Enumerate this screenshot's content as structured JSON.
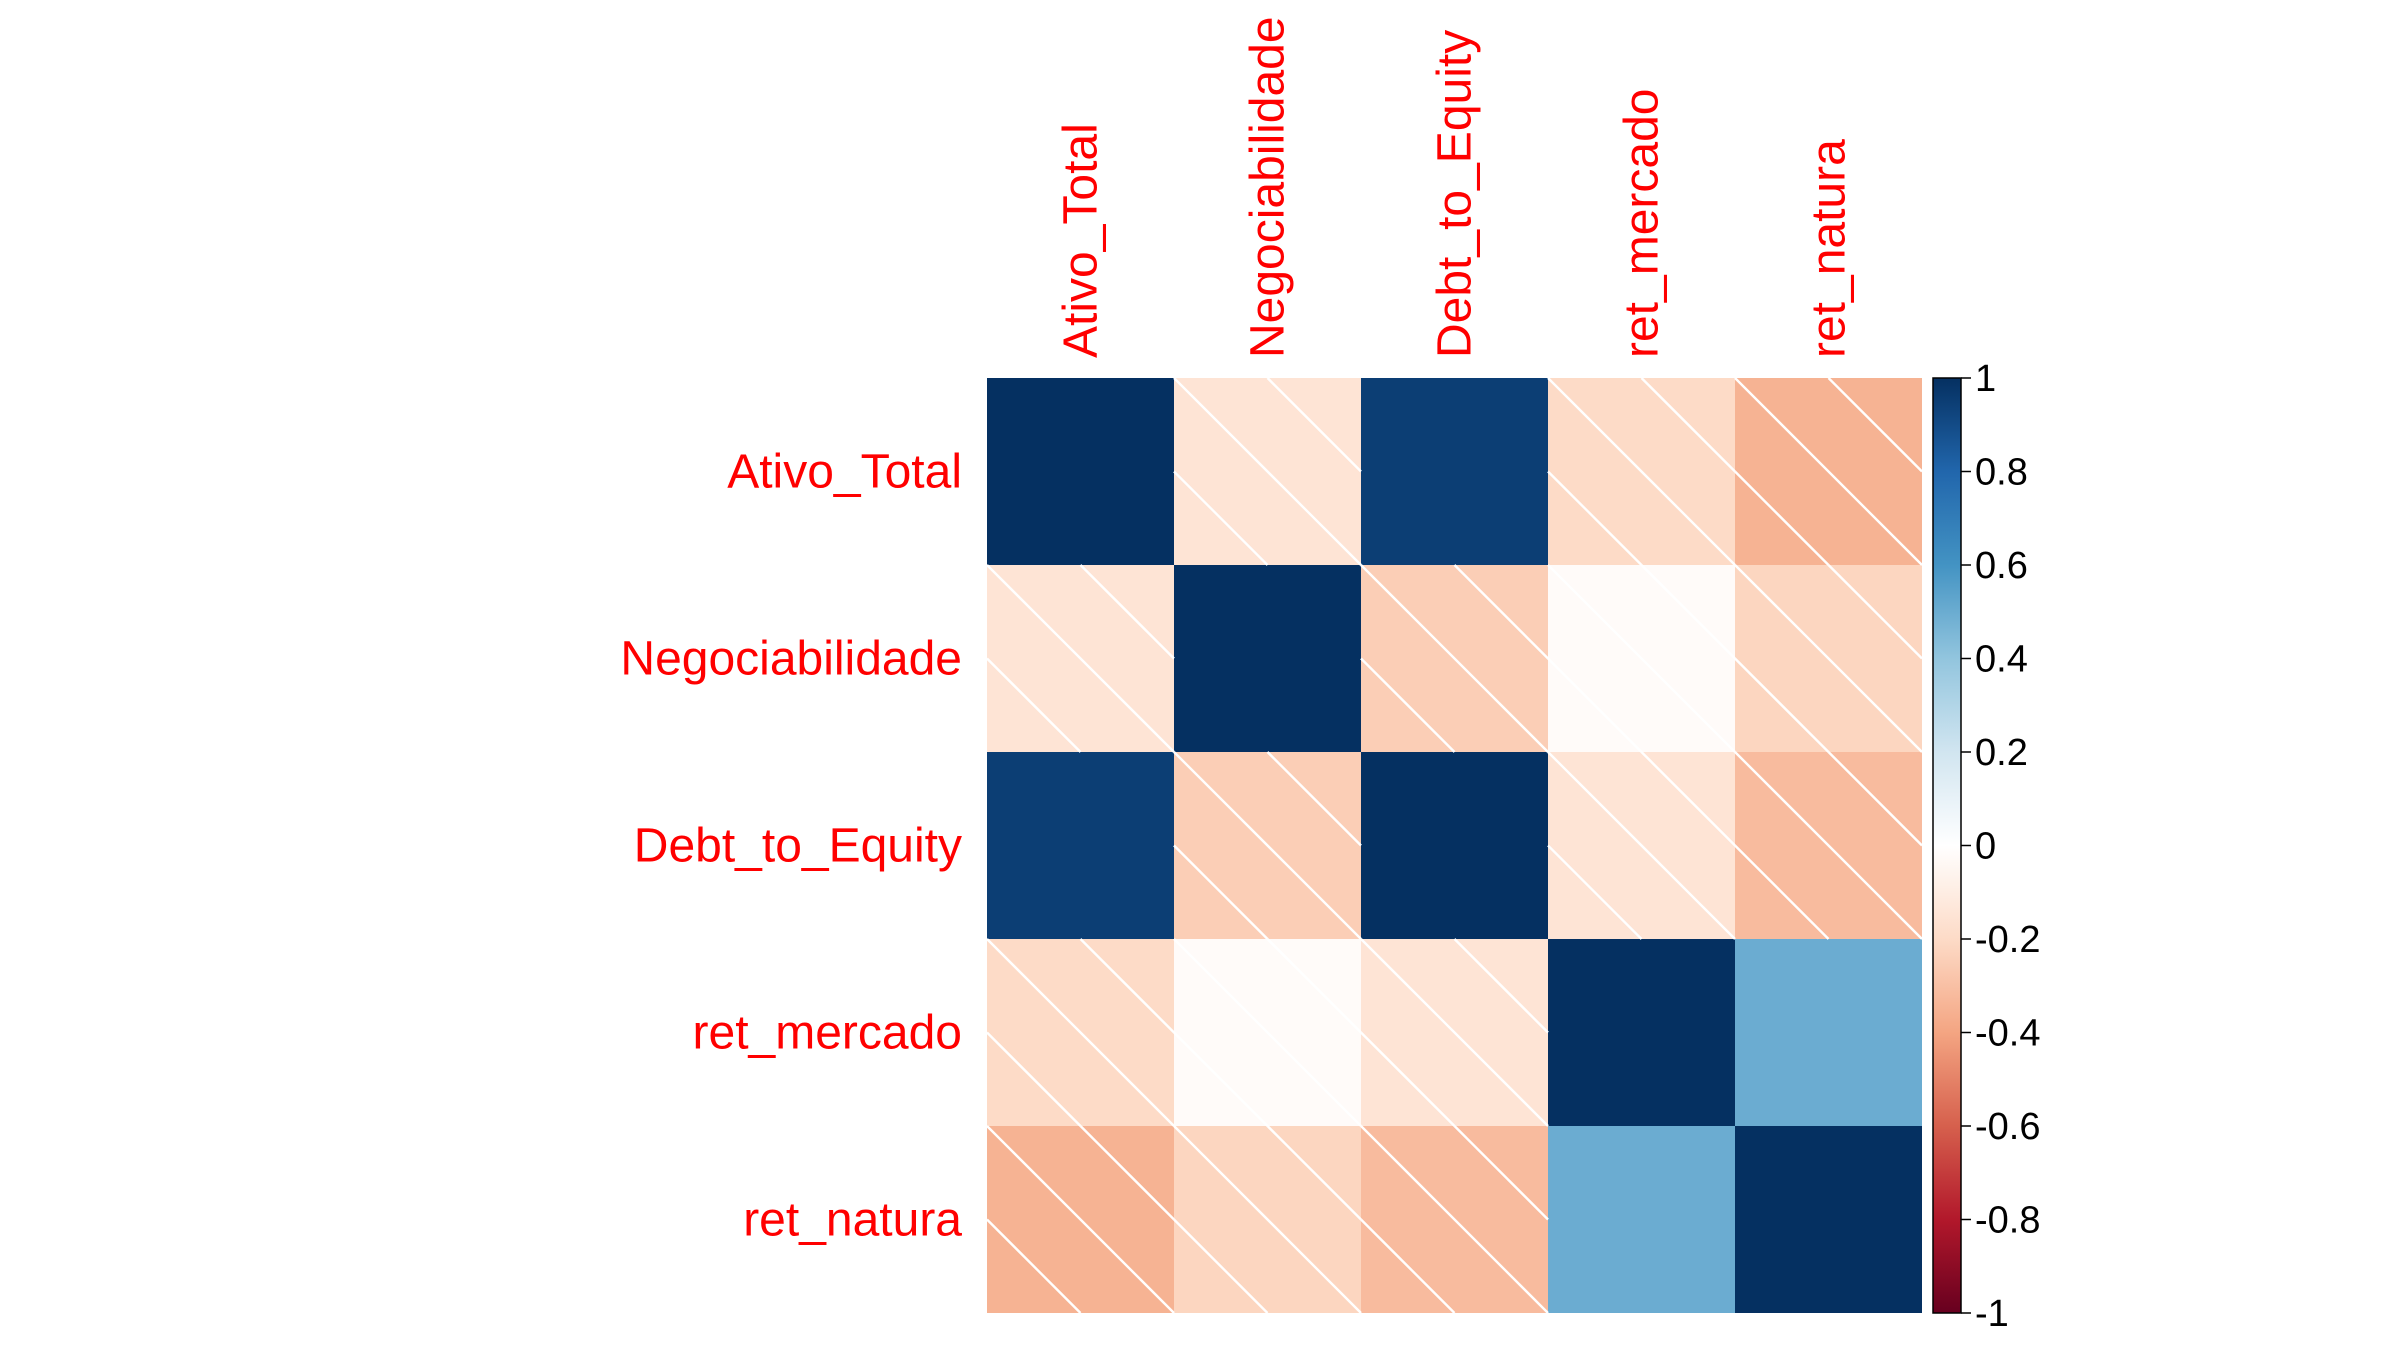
{
  "chart_data": {
    "type": "heatmap",
    "variables": [
      "Ativo_Total",
      "Negociabilidade",
      "Debt_to_Equity",
      "ret_mercado",
      "ret_natura"
    ],
    "matrix": [
      [
        1.0,
        -0.15,
        0.95,
        -0.2,
        -0.35
      ],
      [
        -0.15,
        1.0,
        -0.25,
        -0.02,
        -0.22
      ],
      [
        0.95,
        -0.25,
        1.0,
        -0.15,
        -0.32
      ],
      [
        -0.2,
        -0.02,
        -0.15,
        1.0,
        0.5
      ],
      [
        -0.35,
        -0.22,
        -0.32,
        0.5,
        1.0
      ]
    ],
    "value_range": [
      -1,
      1
    ],
    "colorbar_ticks": [
      "1",
      "0.8",
      "0.6",
      "0.4",
      "0.2",
      "0",
      "-0.2",
      "-0.4",
      "-0.6",
      "-0.8",
      "-1"
    ],
    "colorbar_tick_values": [
      1,
      0.8,
      0.6,
      0.4,
      0.2,
      0,
      -0.2,
      -0.4,
      -0.6,
      -0.8,
      -1
    ],
    "colormap": [
      "#67001F",
      "#B2182B",
      "#D6604D",
      "#F4A582",
      "#FDDBC7",
      "#FFFFFF",
      "#D1E5F0",
      "#92C5DE",
      "#4393C3",
      "#2166AC",
      "#053061"
    ],
    "label_color": "#FF0000",
    "negative_cells_hatched": true,
    "colorbar_position": "right"
  }
}
